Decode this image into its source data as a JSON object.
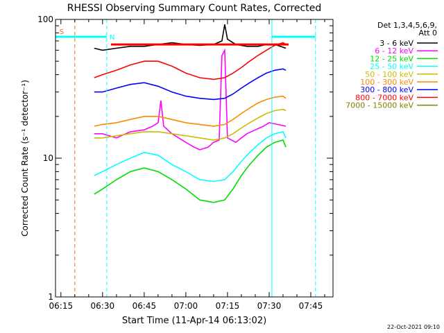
{
  "chart_data": {
    "type": "line",
    "title": "RHESSI Observing Summary Count Rates, Corrected",
    "xlabel": "Start Time (11-Apr-14 06:13:02)",
    "ylabel": "Corrected Count Rate (s⁻¹ detector⁻¹)",
    "x_unit": "minutes after 06:00",
    "x_ticks": [
      {
        "t": 15,
        "label": "06:15"
      },
      {
        "t": 30,
        "label": "06:30"
      },
      {
        "t": 45,
        "label": "06:45"
      },
      {
        "t": 60,
        "label": "07:00"
      },
      {
        "t": 75,
        "label": "07:15"
      },
      {
        "t": 90,
        "label": "07:30"
      },
      {
        "t": 105,
        "label": "07:45"
      }
    ],
    "xlim": [
      13.05,
      113
    ],
    "ylim": [
      1,
      100
    ],
    "y_scale": "log",
    "y_ticks": [
      {
        "v": 1,
        "label": "1"
      },
      {
        "v": 10,
        "label": "10"
      },
      {
        "v": 100,
        "label": "100"
      }
    ],
    "legend_position": "top-right",
    "legend_header": [
      "Det 1,3,4,5,6,9,",
      "Att 0"
    ],
    "series": [
      {
        "name": "3 - 6 keV",
        "color": "#000000",
        "values": [
          [
            27,
            62
          ],
          [
            30,
            60
          ],
          [
            35,
            62
          ],
          [
            40,
            64
          ],
          [
            45,
            64
          ],
          [
            50,
            66
          ],
          [
            55,
            68
          ],
          [
            60,
            66
          ],
          [
            65,
            65
          ],
          [
            70,
            66
          ],
          [
            73,
            70
          ],
          [
            74,
            92
          ],
          [
            75,
            72
          ],
          [
            78,
            66
          ],
          [
            82,
            64
          ],
          [
            86,
            64
          ],
          [
            89,
            66
          ],
          [
            92,
            66
          ],
          [
            94,
            64
          ],
          [
            96,
            62
          ]
        ]
      },
      {
        "name": "6 - 12 keV",
        "color": "#ff00ff",
        "values": [
          [
            27,
            15
          ],
          [
            30,
            15
          ],
          [
            35,
            14
          ],
          [
            40,
            15.5
          ],
          [
            45,
            16
          ],
          [
            48,
            17
          ],
          [
            50,
            18
          ],
          [
            51,
            26
          ],
          [
            52,
            17
          ],
          [
            55,
            15
          ],
          [
            60,
            13
          ],
          [
            63,
            12
          ],
          [
            65,
            11.5
          ],
          [
            68,
            12
          ],
          [
            70,
            13
          ],
          [
            72,
            13.5
          ],
          [
            73,
            55
          ],
          [
            74,
            60
          ],
          [
            75,
            14
          ],
          [
            78,
            13
          ],
          [
            80,
            14
          ],
          [
            82,
            15
          ],
          [
            85,
            16
          ],
          [
            88,
            17
          ],
          [
            90,
            18
          ],
          [
            93,
            17.5
          ],
          [
            96,
            17
          ]
        ]
      },
      {
        "name": "12 - 25 keV",
        "color": "#00dd00",
        "values": [
          [
            27,
            5.5
          ],
          [
            30,
            6
          ],
          [
            35,
            7
          ],
          [
            40,
            8
          ],
          [
            45,
            8.5
          ],
          [
            50,
            8
          ],
          [
            55,
            7
          ],
          [
            60,
            6
          ],
          [
            65,
            5
          ],
          [
            70,
            4.8
          ],
          [
            74,
            5
          ],
          [
            77,
            6
          ],
          [
            80,
            7.5
          ],
          [
            83,
            9
          ],
          [
            86,
            10.5
          ],
          [
            89,
            12
          ],
          [
            92,
            13
          ],
          [
            95,
            13.5
          ],
          [
            96,
            12
          ]
        ]
      },
      {
        "name": "25 - 50 keV",
        "color": "#00ffff",
        "values": [
          [
            27,
            7.5
          ],
          [
            30,
            8
          ],
          [
            35,
            9
          ],
          [
            40,
            10
          ],
          [
            45,
            11
          ],
          [
            50,
            10.5
          ],
          [
            55,
            9
          ],
          [
            60,
            8
          ],
          [
            65,
            7
          ],
          [
            70,
            6.8
          ],
          [
            74,
            7
          ],
          [
            77,
            8
          ],
          [
            80,
            9.5
          ],
          [
            83,
            11
          ],
          [
            86,
            12.5
          ],
          [
            89,
            14
          ],
          [
            92,
            15
          ],
          [
            95,
            15.5
          ],
          [
            96,
            14
          ]
        ]
      },
      {
        "name": "50 - 100 keV",
        "color": "#ccbb00",
        "values": [
          [
            27,
            14
          ],
          [
            30,
            14
          ],
          [
            35,
            14.5
          ],
          [
            40,
            15
          ],
          [
            45,
            15.5
          ],
          [
            50,
            15.5
          ],
          [
            55,
            15
          ],
          [
            60,
            14.5
          ],
          [
            65,
            14
          ],
          [
            70,
            13.5
          ],
          [
            74,
            14
          ],
          [
            77,
            15
          ],
          [
            80,
            16.5
          ],
          [
            83,
            18
          ],
          [
            86,
            19.5
          ],
          [
            89,
            21
          ],
          [
            92,
            22
          ],
          [
            95,
            22.5
          ],
          [
            96,
            22
          ]
        ]
      },
      {
        "name": "100 - 300 keV",
        "color": "#ff8800",
        "values": [
          [
            27,
            17
          ],
          [
            30,
            17.5
          ],
          [
            35,
            18
          ],
          [
            40,
            19
          ],
          [
            45,
            20
          ],
          [
            50,
            20
          ],
          [
            55,
            19
          ],
          [
            60,
            18
          ],
          [
            65,
            17.5
          ],
          [
            70,
            17
          ],
          [
            74,
            17.5
          ],
          [
            77,
            19
          ],
          [
            80,
            21
          ],
          [
            83,
            23
          ],
          [
            86,
            25
          ],
          [
            89,
            26.5
          ],
          [
            92,
            27.5
          ],
          [
            95,
            28
          ],
          [
            96,
            27
          ]
        ]
      },
      {
        "name": "300 - 800 keV",
        "color": "#0000ff",
        "values": [
          [
            27,
            30
          ],
          [
            30,
            30
          ],
          [
            35,
            32
          ],
          [
            40,
            34
          ],
          [
            45,
            35
          ],
          [
            50,
            33
          ],
          [
            55,
            30
          ],
          [
            60,
            28
          ],
          [
            65,
            27
          ],
          [
            70,
            26.5
          ],
          [
            74,
            27
          ],
          [
            77,
            29
          ],
          [
            80,
            32
          ],
          [
            83,
            35
          ],
          [
            86,
            38
          ],
          [
            89,
            41
          ],
          [
            92,
            43
          ],
          [
            95,
            44
          ],
          [
            96,
            43
          ]
        ]
      },
      {
        "name": "800 - 7000 keV",
        "color": "#ff0000",
        "values": [
          [
            27,
            38
          ],
          [
            30,
            40
          ],
          [
            35,
            43
          ],
          [
            40,
            47
          ],
          [
            45,
            50
          ],
          [
            50,
            50
          ],
          [
            55,
            46
          ],
          [
            60,
            41
          ],
          [
            65,
            38
          ],
          [
            70,
            37
          ],
          [
            74,
            38
          ],
          [
            77,
            41
          ],
          [
            80,
            45
          ],
          [
            83,
            50
          ],
          [
            86,
            55
          ],
          [
            89,
            60
          ],
          [
            92,
            65
          ],
          [
            95,
            68
          ],
          [
            96,
            66
          ]
        ]
      },
      {
        "name": "7000 - 15000 keV",
        "color": "#808000",
        "values": []
      }
    ],
    "segments": [
      {
        "color": "#ff0000",
        "t0": 33,
        "t1": 97,
        "y": 66
      },
      {
        "color": "#00ffff",
        "t0": 13.05,
        "t1": 31.5,
        "y": 75
      },
      {
        "color": "#00ffff",
        "t0": 91,
        "t1": 106.7,
        "y": 75
      }
    ],
    "vlines": [
      {
        "t": 13.05,
        "color": "#00ffff",
        "style": "solid"
      },
      {
        "t": 20,
        "color": "#ff6600",
        "style": "dashed"
      },
      {
        "t": 31.5,
        "color": "#00ffff",
        "style": "dashed"
      },
      {
        "t": 91,
        "color": "#00ffff",
        "style": "solid"
      },
      {
        "t": 106.7,
        "color": "#00ffff",
        "style": "dashed"
      }
    ],
    "annotations": [
      {
        "label": "S",
        "color": "#ff6600",
        "t": 14,
        "y": 82
      },
      {
        "label": "N",
        "color": "#00ffff",
        "t": 32,
        "y": 75
      }
    ]
  },
  "footer": {
    "timestamp": "22-Oct-2021 09:10"
  }
}
